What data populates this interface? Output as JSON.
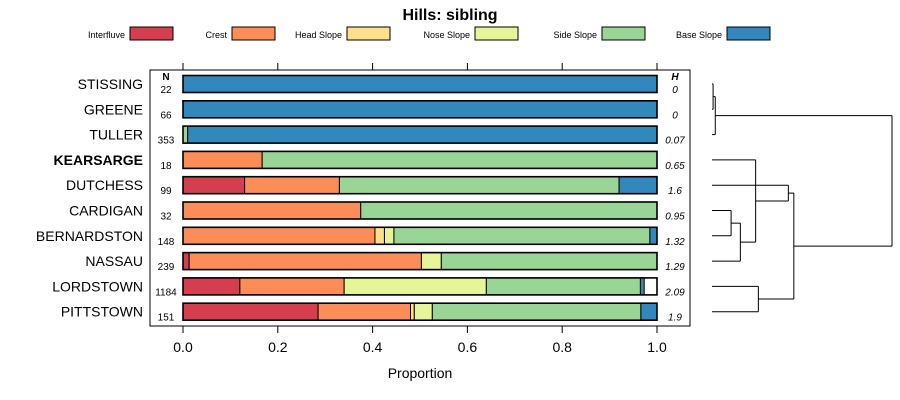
{
  "chart_data": {
    "type": "stacked-bar-horizontal",
    "title": "Hills: sibling",
    "xlabel": "Proportion",
    "xlim": [
      0,
      1
    ],
    "x_ticks": [
      "0.0",
      "0.2",
      "0.4",
      "0.6",
      "0.8",
      "1.0"
    ],
    "n_header": "N",
    "h_header": "H",
    "legend": [
      {
        "label": "Interfluve",
        "color": "#D53E4F"
      },
      {
        "label": "Crest",
        "color": "#FC8D59"
      },
      {
        "label": "Head Slope",
        "color": "#FEE08B"
      },
      {
        "label": "Nose Slope",
        "color": "#E6F598"
      },
      {
        "label": "Side Slope",
        "color": "#99D594"
      },
      {
        "label": "Base Slope",
        "color": "#3288BD"
      }
    ],
    "rows": [
      {
        "name": "STISSING",
        "bold": false,
        "n": "22",
        "h": "0",
        "values": [
          0,
          0,
          0,
          0,
          0,
          1.0
        ]
      },
      {
        "name": "GREENE",
        "bold": false,
        "n": "66",
        "h": "0",
        "values": [
          0,
          0,
          0,
          0,
          0,
          1.0
        ]
      },
      {
        "name": "TULLER",
        "bold": false,
        "n": "353",
        "h": "0.07",
        "values": [
          0,
          0,
          0,
          0,
          0.01,
          0.99
        ]
      },
      {
        "name": "KEARSARGE",
        "bold": true,
        "n": "18",
        "h": "0.65",
        "values": [
          0,
          0.167,
          0,
          0,
          0.833,
          0
        ]
      },
      {
        "name": "DUTCHESS",
        "bold": false,
        "n": "99",
        "h": "1.6",
        "values": [
          0.13,
          0.2,
          0,
          0,
          0.59,
          0.08
        ]
      },
      {
        "name": "CARDIGAN",
        "bold": false,
        "n": "32",
        "h": "0.95",
        "values": [
          0,
          0.375,
          0,
          0,
          0.625,
          0
        ]
      },
      {
        "name": "BERNARDSTON",
        "bold": false,
        "n": "148",
        "h": "1.32",
        "values": [
          0,
          0.405,
          0.02,
          0.02,
          0.54,
          0.015
        ]
      },
      {
        "name": "NASSAU",
        "bold": false,
        "n": "239",
        "h": "1.29",
        "values": [
          0.013,
          0.49,
          0,
          0.042,
          0.455,
          0
        ]
      },
      {
        "name": "LORDSTOWN",
        "bold": false,
        "n": "1184",
        "h": "2.09",
        "values": [
          0.12,
          0.22,
          0,
          0.3,
          0.325,
          0.008
        ]
      },
      {
        "name": "PITTSTOWN",
        "bold": false,
        "n": "151",
        "h": "1.9",
        "values": [
          0.285,
          0.195,
          0.008,
          0.038,
          0.44,
          0.034
        ]
      }
    ],
    "dendrogram": {
      "leaves": [
        "STISSING",
        "GREENE",
        "TULLER",
        "KEARSARGE",
        "DUTCHESS",
        "CARDIGAN",
        "BERNARDSTON",
        "NASSAU",
        "LORDSTOWN",
        "PITTSTOWN"
      ],
      "merges": [
        [
          0,
          1,
          0.02
        ],
        [
          10,
          2,
          0.06
        ],
        [
          5,
          6,
          0.35
        ],
        [
          12,
          7,
          0.52
        ],
        [
          3,
          13,
          0.8
        ],
        [
          14,
          4,
          1.4
        ],
        [
          8,
          9,
          0.85
        ],
        [
          15,
          16,
          1.5
        ],
        [
          11,
          17,
          3.3
        ]
      ]
    }
  }
}
